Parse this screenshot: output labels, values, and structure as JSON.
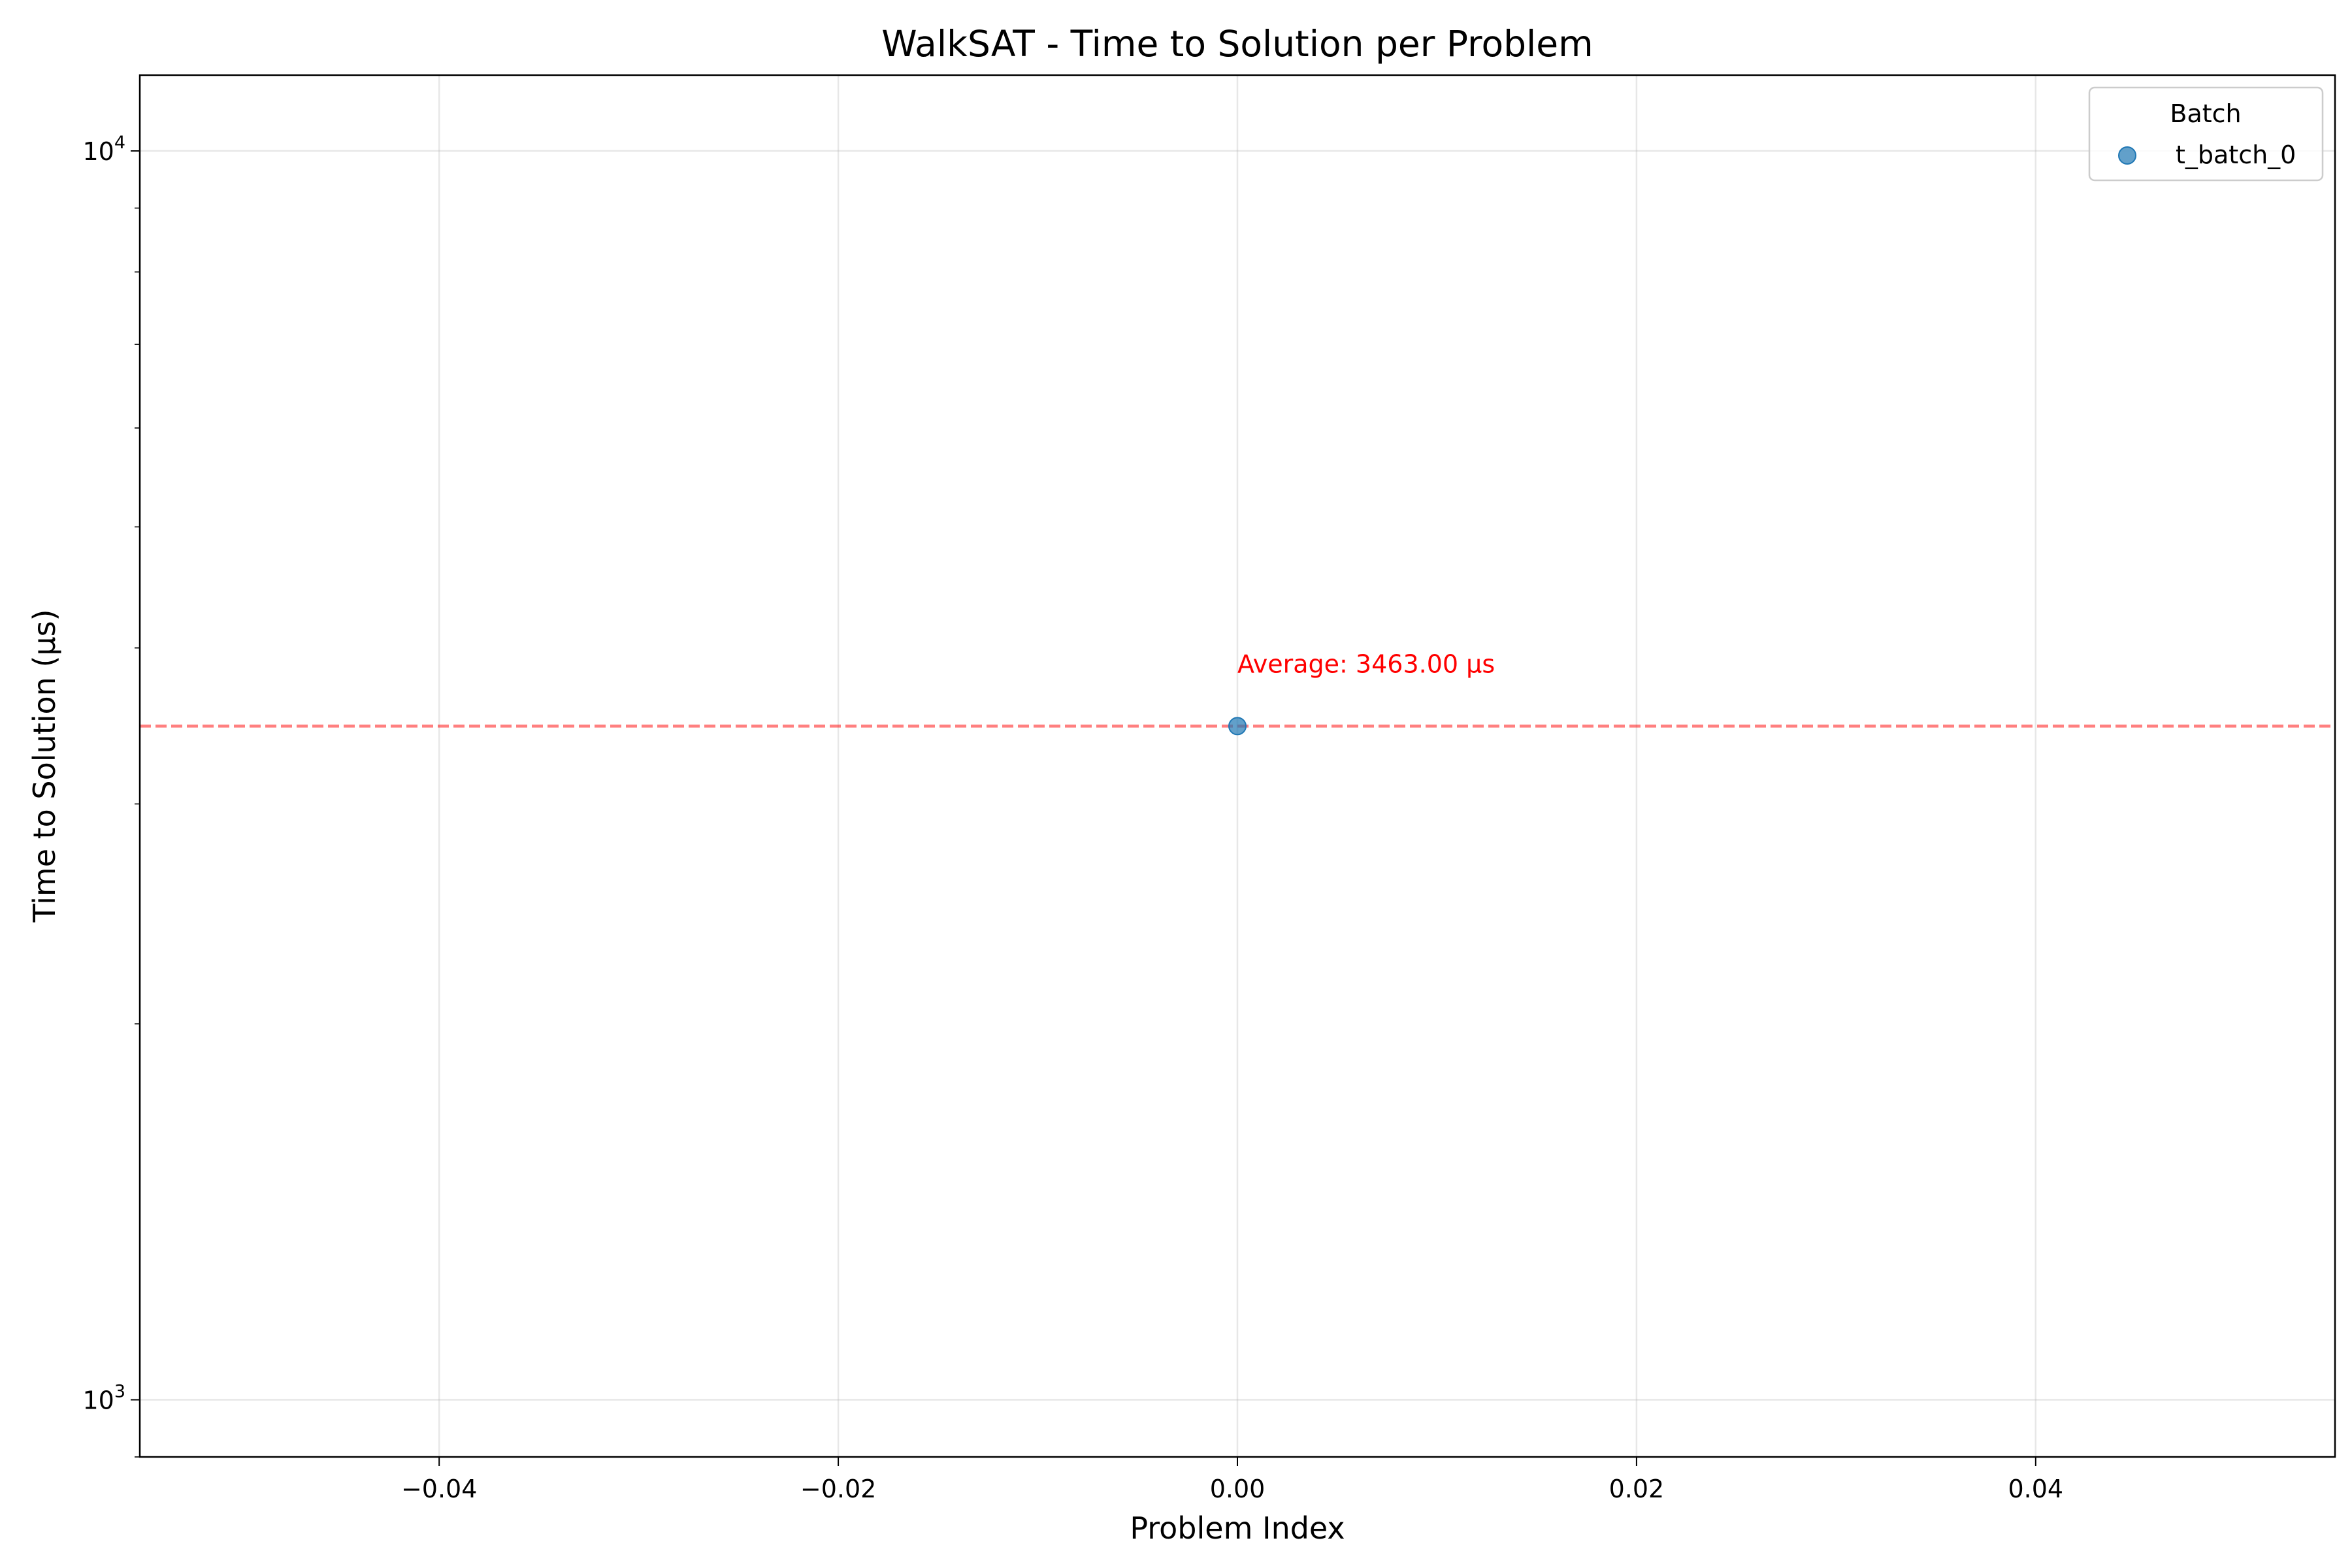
{
  "chart_data": {
    "type": "scatter",
    "title": "WalkSAT - Time to Solution per Problem",
    "xlabel": "Problem Index",
    "ylabel": "Time to Solution (µs)",
    "xlim": [
      -0.055,
      0.055
    ],
    "ylim": [
      900,
      11500
    ],
    "yscale": "log",
    "grid": true,
    "x_ticks": [
      {
        "value": -0.04,
        "label": "−0.04"
      },
      {
        "value": -0.02,
        "label": "−0.02"
      },
      {
        "value": 0.0,
        "label": "0.00"
      },
      {
        "value": 0.02,
        "label": "0.02"
      },
      {
        "value": 0.04,
        "label": "0.04"
      }
    ],
    "y_major_ticks": [
      {
        "value": 1000,
        "base": "10",
        "exp": "3"
      },
      {
        "value": 10000,
        "base": "10",
        "exp": "4"
      }
    ],
    "y_minor_ticks": [
      900,
      2000,
      3000,
      4000,
      5000,
      6000,
      7000,
      8000,
      9000
    ],
    "series": [
      {
        "name": "t_batch_0",
        "color": "#1f77b4",
        "points": [
          {
            "x": 0.0,
            "y": 3463
          }
        ]
      }
    ],
    "average_line": {
      "value": 3463.0,
      "color": "#ff0000",
      "label": "Average: 3463.00 µs"
    },
    "legend": {
      "title": "Batch",
      "position": "top-right"
    }
  }
}
